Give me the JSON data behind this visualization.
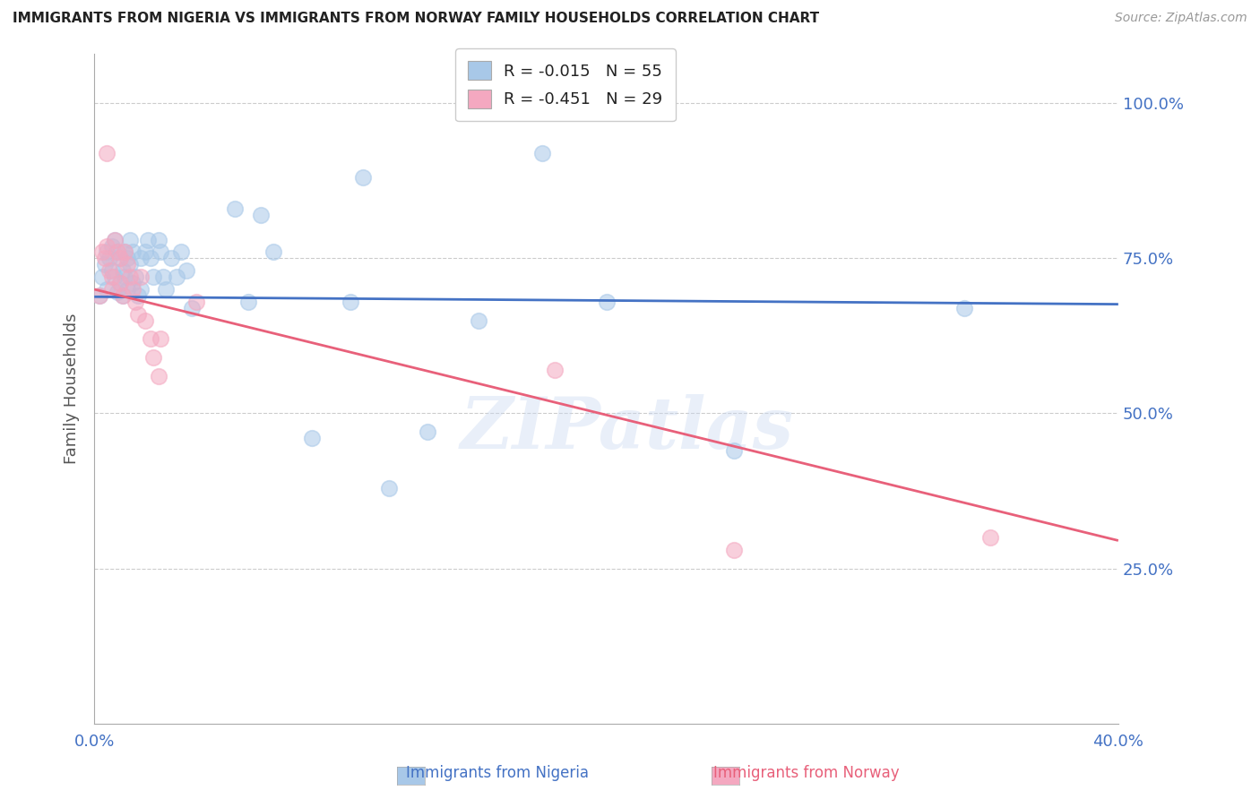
{
  "title": "IMMIGRANTS FROM NIGERIA VS IMMIGRANTS FROM NORWAY FAMILY HOUSEHOLDS CORRELATION CHART",
  "source": "Source: ZipAtlas.com",
  "ylabel": "Family Households",
  "ytick_labels": [
    "100.0%",
    "75.0%",
    "50.0%",
    "25.0%"
  ],
  "ytick_values": [
    1.0,
    0.75,
    0.5,
    0.25
  ],
  "xlim": [
    0.0,
    0.4
  ],
  "ylim": [
    0.0,
    1.08
  ],
  "legend_r_nigeria": "R = -0.015",
  "legend_n_nigeria": "N = 55",
  "legend_r_norway": "R = -0.451",
  "legend_n_norway": "N = 29",
  "nigeria_color": "#a8c8e8",
  "norway_color": "#f4a8c0",
  "nigeria_line_color": "#4472c4",
  "norway_line_color": "#e8607a",
  "background_color": "#ffffff",
  "watermark": "ZIPatlas",
  "nigeria_x": [
    0.002,
    0.003,
    0.004,
    0.005,
    0.005,
    0.006,
    0.007,
    0.007,
    0.008,
    0.008,
    0.009,
    0.009,
    0.01,
    0.01,
    0.011,
    0.011,
    0.012,
    0.012,
    0.013,
    0.013,
    0.014,
    0.014,
    0.015,
    0.015,
    0.016,
    0.017,
    0.018,
    0.018,
    0.02,
    0.021,
    0.022,
    0.023,
    0.025,
    0.026,
    0.027,
    0.028,
    0.03,
    0.032,
    0.034,
    0.036,
    0.038,
    0.055,
    0.06,
    0.065,
    0.07,
    0.085,
    0.1,
    0.105,
    0.115,
    0.13,
    0.15,
    0.175,
    0.2,
    0.25,
    0.34
  ],
  "nigeria_y": [
    0.69,
    0.72,
    0.74,
    0.76,
    0.7,
    0.75,
    0.73,
    0.77,
    0.78,
    0.72,
    0.695,
    0.76,
    0.71,
    0.75,
    0.73,
    0.69,
    0.76,
    0.72,
    0.75,
    0.7,
    0.74,
    0.78,
    0.76,
    0.71,
    0.72,
    0.69,
    0.75,
    0.7,
    0.76,
    0.78,
    0.75,
    0.72,
    0.78,
    0.76,
    0.72,
    0.7,
    0.75,
    0.72,
    0.76,
    0.73,
    0.67,
    0.83,
    0.68,
    0.82,
    0.76,
    0.46,
    0.68,
    0.88,
    0.38,
    0.47,
    0.65,
    0.92,
    0.68,
    0.44,
    0.67
  ],
  "norway_x": [
    0.002,
    0.003,
    0.004,
    0.005,
    0.005,
    0.006,
    0.007,
    0.007,
    0.008,
    0.009,
    0.01,
    0.01,
    0.011,
    0.012,
    0.013,
    0.014,
    0.015,
    0.016,
    0.017,
    0.018,
    0.02,
    0.022,
    0.023,
    0.025,
    0.026,
    0.04,
    0.18,
    0.25,
    0.35
  ],
  "norway_y": [
    0.69,
    0.76,
    0.75,
    0.92,
    0.77,
    0.73,
    0.72,
    0.7,
    0.78,
    0.76,
    0.75,
    0.71,
    0.69,
    0.76,
    0.74,
    0.72,
    0.7,
    0.68,
    0.66,
    0.72,
    0.65,
    0.62,
    0.59,
    0.56,
    0.62,
    0.68,
    0.57,
    0.28,
    0.3
  ],
  "nigeria_trend_x": [
    0.0,
    0.4
  ],
  "nigeria_trend_y": [
    0.688,
    0.676
  ],
  "norway_trend_x": [
    0.0,
    0.4
  ],
  "norway_trend_y": [
    0.7,
    0.295
  ]
}
